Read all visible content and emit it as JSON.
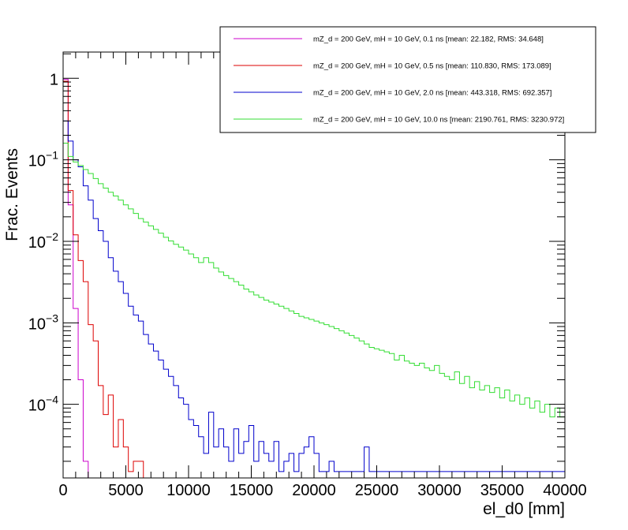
{
  "chart_data": {
    "type": "histogram",
    "title": "",
    "xlabel": "el_d0 [mm]",
    "ylabel": "Frac. Events",
    "x_scale": "linear",
    "y_scale": "log",
    "xlim": [
      0,
      40000
    ],
    "ylim": [
      1.25e-05,
      2.1
    ],
    "bin_width": 400,
    "x_ticks": [
      0,
      5000,
      10000,
      15000,
      20000,
      25000,
      30000,
      35000,
      40000
    ],
    "x_tick_labels": [
      "0",
      "5000",
      "10000",
      "15000",
      "20000",
      "25000",
      "30000",
      "35000",
      "40000"
    ],
    "y_ticks": [
      0.0001,
      0.001,
      0.01,
      0.1,
      1
    ],
    "y_tick_labels": [
      {
        "base": "10",
        "exp": "−4"
      },
      {
        "base": "10",
        "exp": "−3"
      },
      {
        "base": "10",
        "exp": "−2"
      },
      {
        "base": "10",
        "exp": "−1"
      },
      {
        "base": "1",
        "exp": ""
      }
    ],
    "legend_position": "top-right",
    "series": [
      {
        "name": "mZ_d = 200 GeV, mH = 10 GeV, 0.1 ns [mean: 22.182, RMS: 34.648]",
        "color": "#cc00cc",
        "values": [
          0.97,
          0.028,
          0.0015,
          0.0002,
          2e-05
        ]
      },
      {
        "name": "mZ_d = 200 GeV, mH = 10 GeV, 0.5 ns [mean: 110.830, RMS: 173.089]",
        "color": "#dd0000",
        "values": [
          0.92,
          0.042,
          0.012,
          0.0058,
          0.0032,
          0.00095,
          0.0006,
          0.00017,
          7.5e-05,
          0.00013,
          3e-05,
          6.5e-05,
          3e-05,
          1.5e-05,
          2e-05,
          2e-05
        ]
      },
      {
        "name": "mZ_d = 200 GeV, mH = 10 GeV, 2.0 ns [mean: 443.318, RMS: 692.357]",
        "color": "#0000cc",
        "values": [
          0.3,
          0.17,
          0.1,
          0.082,
          0.048,
          0.032,
          0.019,
          0.0135,
          0.01,
          0.0063,
          0.0043,
          0.0032,
          0.0023,
          0.0016,
          0.00125,
          0.00105,
          0.00072,
          0.00055,
          0.00045,
          0.00035,
          0.00027,
          0.00022,
          0.00017,
          0.00012,
          0.0001,
          6.5e-05,
          5.5e-05,
          4e-05,
          2.5e-05,
          8e-05,
          3e-05,
          5e-05,
          3e-05,
          2e-05,
          5e-05,
          2.5e-05,
          3.5e-05,
          5.5e-05,
          2e-05,
          3.5e-05,
          2.5e-05,
          2e-05,
          3.5e-05,
          1.5e-05,
          2e-05,
          2.5e-05,
          1.5e-05,
          2.5e-05,
          3e-05,
          4e-05,
          2.5e-05,
          1.5e-05,
          1.5e-05,
          2e-05,
          1.5e-05,
          1.5e-05,
          1.5e-05,
          1.5e-05,
          1.5e-05,
          1.5e-05,
          3e-05,
          1.5e-05,
          1.5e-05,
          1.5e-05,
          1.5e-05,
          1.5e-05,
          1.5e-05,
          1.5e-05,
          1.5e-05,
          1.5e-05,
          1.5e-05,
          1.5e-05,
          1.5e-05,
          1.5e-05,
          1.5e-05,
          1.5e-05,
          1.5e-05,
          1.5e-05,
          1.5e-05,
          1.5e-05,
          1.5e-05,
          1.5e-05,
          1.5e-05,
          1.5e-05,
          1.5e-05,
          1.5e-05,
          1.5e-05,
          1.5e-05,
          1.5e-05,
          1.5e-05,
          1.5e-05,
          1.5e-05,
          1.5e-05,
          1.5e-05,
          1.5e-05,
          1.5e-05,
          1.5e-05,
          1.5e-05,
          1.5e-05,
          1.5e-05
        ]
      },
      {
        "name": "mZ_d = 200 GeV, mH = 10 GeV, 10.0 ns [mean: 2190.761, RMS: 3230.972]",
        "color": "#33dd33",
        "values": [
          0.16,
          0.11,
          0.094,
          0.085,
          0.076,
          0.068,
          0.059,
          0.051,
          0.045,
          0.04,
          0.036,
          0.032,
          0.028,
          0.025,
          0.022,
          0.019,
          0.0172,
          0.0155,
          0.014,
          0.0126,
          0.0112,
          0.0101,
          0.0092,
          0.0085,
          0.0078,
          0.007,
          0.0063,
          0.0055,
          0.0063,
          0.0055,
          0.0047,
          0.0042,
          0.0038,
          0.0035,
          0.0032,
          0.0029,
          0.0026,
          0.0024,
          0.0022,
          0.00205,
          0.0019,
          0.0018,
          0.0017,
          0.0016,
          0.0015,
          0.0014,
          0.0013,
          0.0012,
          0.00115,
          0.0011,
          0.00105,
          0.001,
          0.00095,
          0.0009,
          0.00085,
          0.0008,
          0.00075,
          0.0007,
          0.00065,
          0.0006,
          0.00055,
          0.0005,
          0.00048,
          0.00046,
          0.00044,
          0.00042,
          0.00035,
          0.0004,
          0.00034,
          0.00032,
          0.0003,
          0.00032,
          0.00028,
          0.00026,
          0.0003,
          0.00024,
          0.00022,
          0.0002,
          0.00025,
          0.00018,
          0.00022,
          0.00016,
          0.00019,
          0.00015,
          0.00017,
          0.00014,
          0.00016,
          0.00012,
          0.00015,
          0.00011,
          0.00013,
          0.0001,
          0.00012,
          9e-05,
          0.00011,
          8e-05,
          0.0001,
          7e-05,
          9e-05,
          7e-05
        ]
      }
    ]
  }
}
